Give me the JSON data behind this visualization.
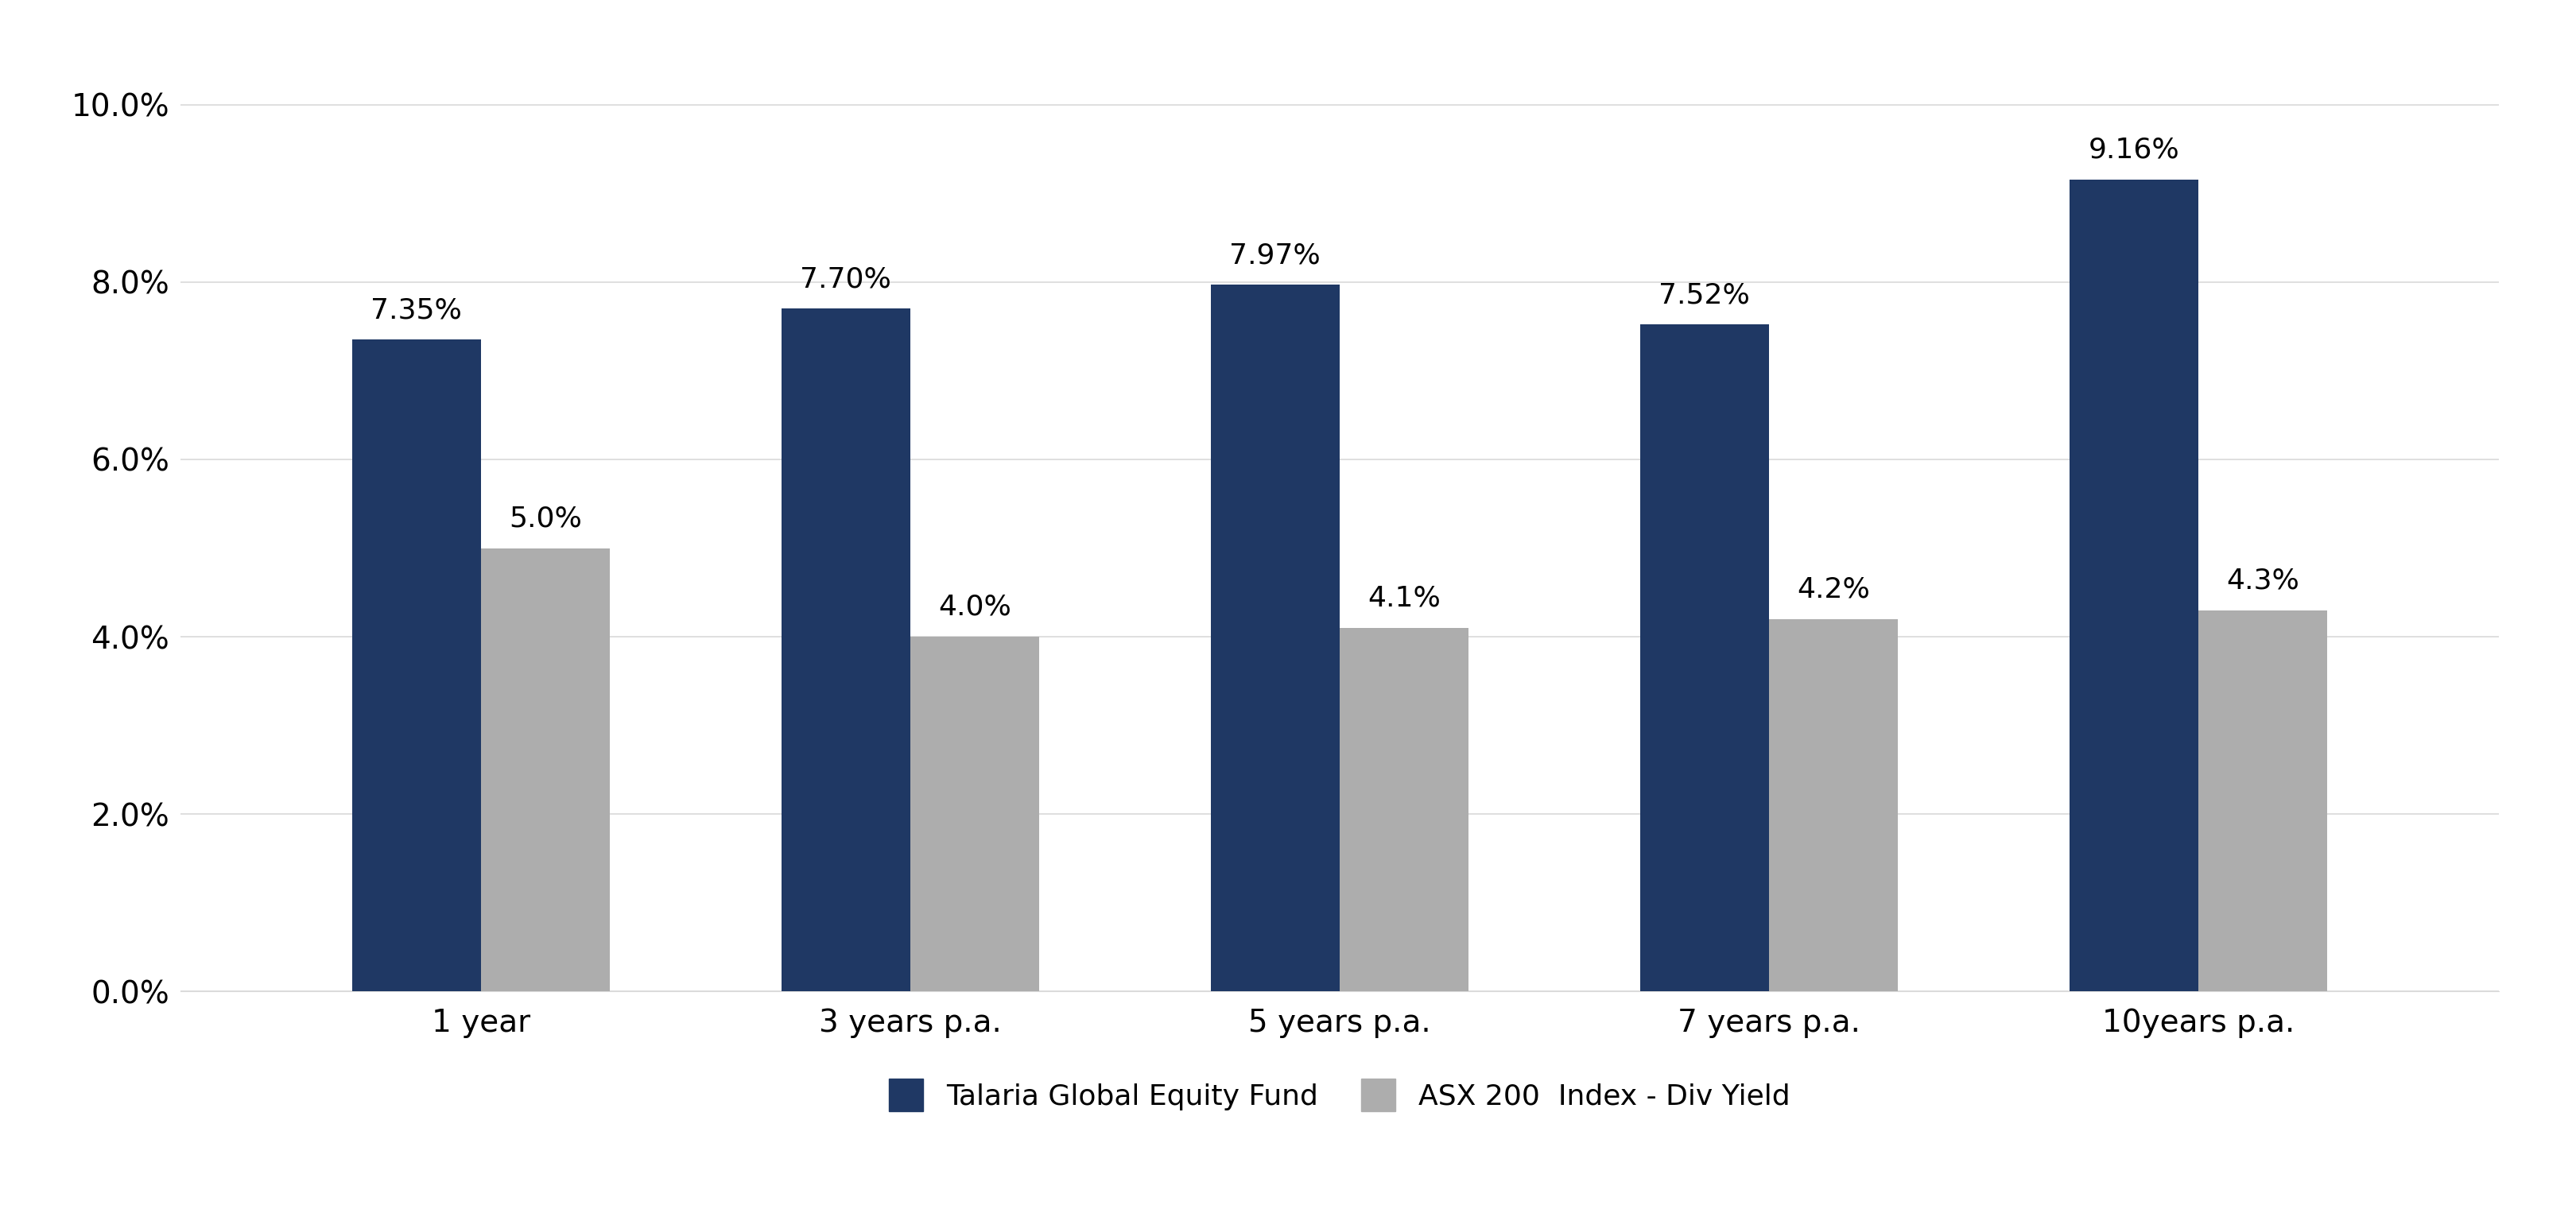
{
  "categories": [
    "1 year",
    "3 years p.a.",
    "5 years p.a.",
    "7 years p.a.",
    "10years p.a."
  ],
  "talaria_values": [
    0.0735,
    0.077,
    0.0797,
    0.0752,
    0.0916
  ],
  "asx_values": [
    0.05,
    0.04,
    0.041,
    0.042,
    0.043
  ],
  "talaria_labels": [
    "7.35%",
    "7.70%",
    "7.97%",
    "7.52%",
    "9.16%"
  ],
  "asx_labels": [
    "5.0%",
    "4.0%",
    "4.1%",
    "4.2%",
    "4.3%"
  ],
  "talaria_color": "#1F3864",
  "asx_color": "#ADADAD",
  "background_color": "#FFFFFF",
  "ylim": [
    0,
    0.105
  ],
  "yticks": [
    0.0,
    0.02,
    0.04,
    0.06,
    0.08,
    0.1
  ],
  "ytick_labels": [
    "0.0%",
    "2.0%",
    "4.0%",
    "6.0%",
    "8.0%",
    "10.0%"
  ],
  "legend_talaria": "Talaria Global Equity Fund",
  "legend_asx": "ASX 200  Index - Div Yield",
  "bar_width": 0.3,
  "tick_fontsize": 28,
  "legend_fontsize": 26,
  "value_label_fontsize": 26,
  "grid_color": "#D9D9D9",
  "grid_linewidth": 1.2,
  "label_color": "#000000",
  "tick_color": "#000000"
}
